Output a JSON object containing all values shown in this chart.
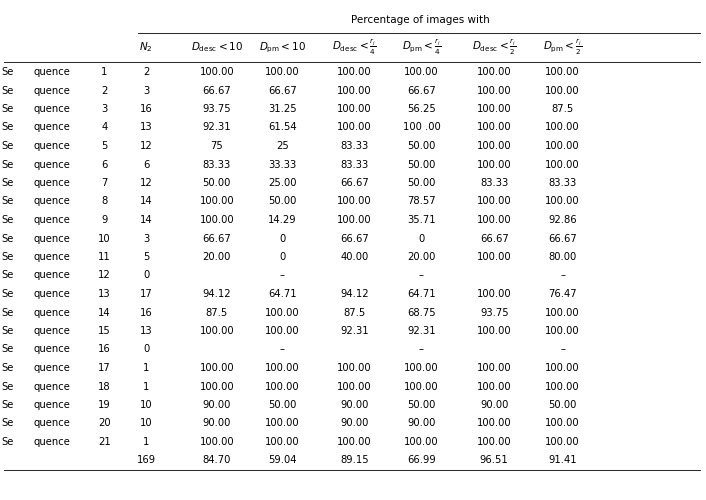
{
  "title": "Percentage of images with",
  "col_headers": [
    "$N_2$",
    "$D_\\mathrm{desc} < 10$",
    "$D_\\mathrm{pm} < 10$",
    "$D_\\mathrm{desc} < \\frac{r_i}{4}$",
    "$D_\\mathrm{pm} < \\frac{r_i}{4}$",
    "$D_\\mathrm{desc} < \\frac{r_i}{2}$",
    "$D_\\mathrm{pm} < \\frac{r_i}{2}$"
  ],
  "seq_nums": [
    "1",
    "2",
    "3",
    "4",
    "5",
    "6",
    "7",
    "8",
    "9",
    "10",
    "11",
    "12",
    "13",
    "14",
    "15",
    "16",
    "17",
    "18",
    "19",
    "20",
    "21",
    ""
  ],
  "row_labels": [
    "quence",
    "quence",
    "quence",
    "quence",
    "quence",
    "quence",
    "quence",
    "quence",
    "quence",
    "quence",
    "quence",
    "quence",
    "quence",
    "quence",
    "quence",
    "quence",
    "quence",
    "quence",
    "quence",
    "quence",
    "quence",
    ""
  ],
  "rows": [
    [
      "2",
      "100.00",
      "100.00",
      "100.00",
      "100.00",
      "100.00",
      "100.00"
    ],
    [
      "3",
      "66.67",
      "66.67",
      "100.00",
      "66.67",
      "100.00",
      "100.00"
    ],
    [
      "16",
      "93.75",
      "31.25",
      "100.00",
      "56.25",
      "100.00",
      "87.5"
    ],
    [
      "13",
      "92.31",
      "61.54",
      "100.00",
      "100 .00",
      "100.00",
      "100.00"
    ],
    [
      "12",
      "75",
      "25",
      "83.33",
      "50.00",
      "100.00",
      "100.00"
    ],
    [
      "6",
      "83.33",
      "33.33",
      "83.33",
      "50.00",
      "100.00",
      "100.00"
    ],
    [
      "12",
      "50.00",
      "25.00",
      "66.67",
      "50.00",
      "83.33",
      "83.33"
    ],
    [
      "14",
      "100.00",
      "50.00",
      "100.00",
      "78.57",
      "100.00",
      "100.00"
    ],
    [
      "14",
      "100.00",
      "14.29",
      "100.00",
      "35.71",
      "100.00",
      "92.86"
    ],
    [
      "3",
      "66.67",
      "0",
      "66.67",
      "0",
      "66.67",
      "66.67"
    ],
    [
      "5",
      "20.00",
      "0",
      "40.00",
      "20.00",
      "100.00",
      "80.00"
    ],
    [
      "0",
      "",
      "–",
      "",
      "–",
      "",
      "–"
    ],
    [
      "17",
      "94.12",
      "64.71",
      "94.12",
      "64.71",
      "100.00",
      "76.47"
    ],
    [
      "16",
      "87.5",
      "100.00",
      "87.5",
      "68.75",
      "93.75",
      "100.00"
    ],
    [
      "13",
      "100.00",
      "100.00",
      "92.31",
      "92.31",
      "100.00",
      "100.00"
    ],
    [
      "0",
      "",
      "–",
      "",
      "–",
      "",
      "–"
    ],
    [
      "1",
      "100.00",
      "100.00",
      "100.00",
      "100.00",
      "100.00",
      "100.00"
    ],
    [
      "1",
      "100.00",
      "100.00",
      "100.00",
      "100.00",
      "100.00",
      "100.00"
    ],
    [
      "10",
      "90.00",
      "50.00",
      "90.00",
      "50.00",
      "90.00",
      "50.00"
    ],
    [
      "10",
      "90.00",
      "100.00",
      "90.00",
      "90.00",
      "100.00",
      "100.00"
    ],
    [
      "1",
      "100.00",
      "100.00",
      "100.00",
      "100.00",
      "100.00",
      "100.00"
    ],
    [
      "169",
      "84.70",
      "59.04",
      "89.15",
      "66.99",
      "96.51",
      "91.41"
    ]
  ],
  "background_color": "#ffffff",
  "font_size": 7.2,
  "header_font_size": 7.5
}
